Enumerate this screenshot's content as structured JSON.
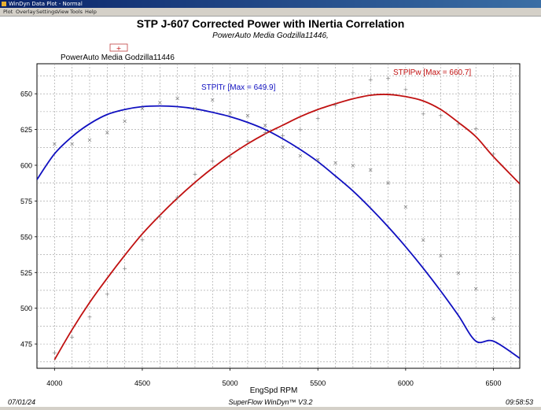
{
  "window": {
    "title": "WinDyn Data Plot - Normal",
    "menu": [
      "Plot",
      "Overlay",
      "Settings",
      "View",
      "Tools",
      "Help"
    ]
  },
  "footer": {
    "date": "07/01/24",
    "software": "SuperFlow WinDyn™ V3.2",
    "time": "09:58:53"
  },
  "chart_data": {
    "type": "line",
    "title": "STP J-607 Corrected Power with INertia Correlation",
    "subtitle": "PowerAuto Media Godzilla11446,",
    "legend": {
      "label": "PowerAuto Media Godzilla11446",
      "placement": "top-left"
    },
    "xlabel": "EngSpd RPM",
    "ylabel": "",
    "xlim": [
      3900,
      6650
    ],
    "ylim": [
      458,
      671
    ],
    "xticks": [
      4000,
      4500,
      5000,
      5500,
      6000,
      6500
    ],
    "yticks": [
      475,
      500,
      525,
      550,
      575,
      600,
      625,
      650
    ],
    "grid": true,
    "series": [
      {
        "name": "STPlTr",
        "max_label": "STPlTr [Max = 649.9]",
        "color": "#1010c0",
        "marker": "x",
        "x": [
          3900,
          4000,
          4100,
          4200,
          4300,
          4400,
          4500,
          4600,
          4700,
          4800,
          4900,
          5000,
          5100,
          5200,
          5300,
          5400,
          5500,
          5600,
          5700,
          5800,
          5900,
          6000,
          6100,
          6200,
          6300,
          6400,
          6500,
          6650
        ],
        "values": [
          590,
          608,
          620,
          629,
          635.5,
          639,
          641,
          641.5,
          641,
          639.5,
          637,
          634,
          630,
          625,
          618.5,
          611,
          602.5,
          592.5,
          582,
          570,
          557,
          543,
          528,
          512,
          495,
          477,
          477,
          465
        ],
        "points": [
          [
            4000,
            615
          ],
          [
            4100,
            615
          ],
          [
            4200,
            618
          ],
          [
            4300,
            623
          ],
          [
            4400,
            631
          ],
          [
            4500,
            640
          ],
          [
            4600,
            644
          ],
          [
            4700,
            647
          ],
          [
            4800,
            640
          ],
          [
            4900,
            646
          ],
          [
            5000,
            637
          ],
          [
            5100,
            635
          ],
          [
            5200,
            628
          ],
          [
            5300,
            613
          ],
          [
            5400,
            607
          ],
          [
            5500,
            604
          ],
          [
            5600,
            602
          ],
          [
            5700,
            600
          ],
          [
            5800,
            597
          ],
          [
            5900,
            588
          ],
          [
            6000,
            571
          ],
          [
            6100,
            548
          ],
          [
            6200,
            537
          ],
          [
            6300,
            525
          ],
          [
            6400,
            514
          ],
          [
            6500,
            493
          ]
        ]
      },
      {
        "name": "STPlPw",
        "max_label": "STPlPw [Max = 660.7]",
        "color": "#c01010",
        "marker": "+",
        "x": [
          4000,
          4100,
          4200,
          4300,
          4400,
          4500,
          4600,
          4700,
          4800,
          4900,
          5000,
          5100,
          5200,
          5300,
          5400,
          5500,
          5600,
          5700,
          5800,
          5900,
          6000,
          6100,
          6200,
          6300,
          6400,
          6500,
          6650
        ],
        "values": [
          464,
          485,
          504,
          521,
          537,
          552,
          565,
          577,
          588,
          598,
          607,
          615,
          622,
          628,
          634,
          639,
          643,
          646.5,
          649,
          649.5,
          648,
          645,
          639,
          630,
          620,
          606,
          587
        ],
        "points": [
          [
            4000,
            469
          ],
          [
            4100,
            480
          ],
          [
            4200,
            494
          ],
          [
            4300,
            510
          ],
          [
            4400,
            528
          ],
          [
            4500,
            548
          ],
          [
            4600,
            564
          ],
          [
            4700,
            578
          ],
          [
            4800,
            594
          ],
          [
            4900,
            603
          ],
          [
            5000,
            606
          ],
          [
            5100,
            617
          ],
          [
            5200,
            623
          ],
          [
            5300,
            621
          ],
          [
            5400,
            625
          ],
          [
            5500,
            633
          ],
          [
            5600,
            642
          ],
          [
            5700,
            651
          ],
          [
            5800,
            660
          ],
          [
            5900,
            661
          ],
          [
            6000,
            653
          ],
          [
            6100,
            636
          ],
          [
            6200,
            635
          ],
          [
            6300,
            629
          ],
          [
            6400,
            626
          ],
          [
            6500,
            608
          ]
        ]
      }
    ]
  }
}
